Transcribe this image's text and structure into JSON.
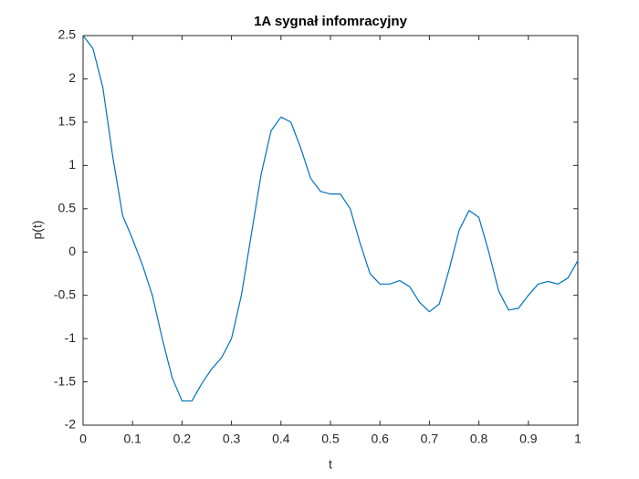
{
  "chart_data": {
    "type": "line",
    "title": "1A sygnał infomracyjny",
    "x_label": "t",
    "y_label": "p(t)",
    "x": [
      0,
      0.02,
      0.04,
      0.06,
      0.08,
      0.1,
      0.12,
      0.14,
      0.16,
      0.18,
      0.2,
      0.22,
      0.24,
      0.26,
      0.28,
      0.3,
      0.32,
      0.34,
      0.36,
      0.38,
      0.4,
      0.42,
      0.44,
      0.46,
      0.48,
      0.5,
      0.52,
      0.54,
      0.56,
      0.58,
      0.6,
      0.62,
      0.64,
      0.66,
      0.68,
      0.7,
      0.72,
      0.74,
      0.76,
      0.78,
      0.8,
      0.82,
      0.84,
      0.86,
      0.88,
      0.9,
      0.92,
      0.94,
      0.96,
      0.98,
      1
    ],
    "series": [
      {
        "name": "p(t)",
        "color": "#0072bd",
        "values": [
          2.5,
          2.35,
          1.9,
          1.1,
          0.42,
          0.15,
          -0.15,
          -0.5,
          -1.0,
          -1.45,
          -1.72,
          -1.72,
          -1.52,
          -1.35,
          -1.22,
          -1.0,
          -0.5,
          0.2,
          0.9,
          1.4,
          1.56,
          1.5,
          1.2,
          0.85,
          0.7,
          0.67,
          0.67,
          0.5,
          0.1,
          -0.25,
          -0.37,
          -0.37,
          -0.33,
          -0.4,
          -0.58,
          -0.69,
          -0.6,
          -0.2,
          0.25,
          0.48,
          0.4,
          0.0,
          -0.45,
          -0.67,
          -0.65,
          -0.5,
          -0.37,
          -0.34,
          -0.37,
          -0.3,
          -0.1
        ]
      }
    ],
    "xlim": [
      0,
      1
    ],
    "ylim": [
      -2,
      2.5
    ],
    "xticks": [
      0,
      0.1,
      0.2,
      0.3,
      0.4,
      0.5,
      0.6,
      0.7,
      0.8,
      0.9,
      1
    ],
    "yticks": [
      -2,
      -1.5,
      -1,
      -0.5,
      0,
      0.5,
      1,
      1.5,
      2,
      2.5
    ]
  }
}
